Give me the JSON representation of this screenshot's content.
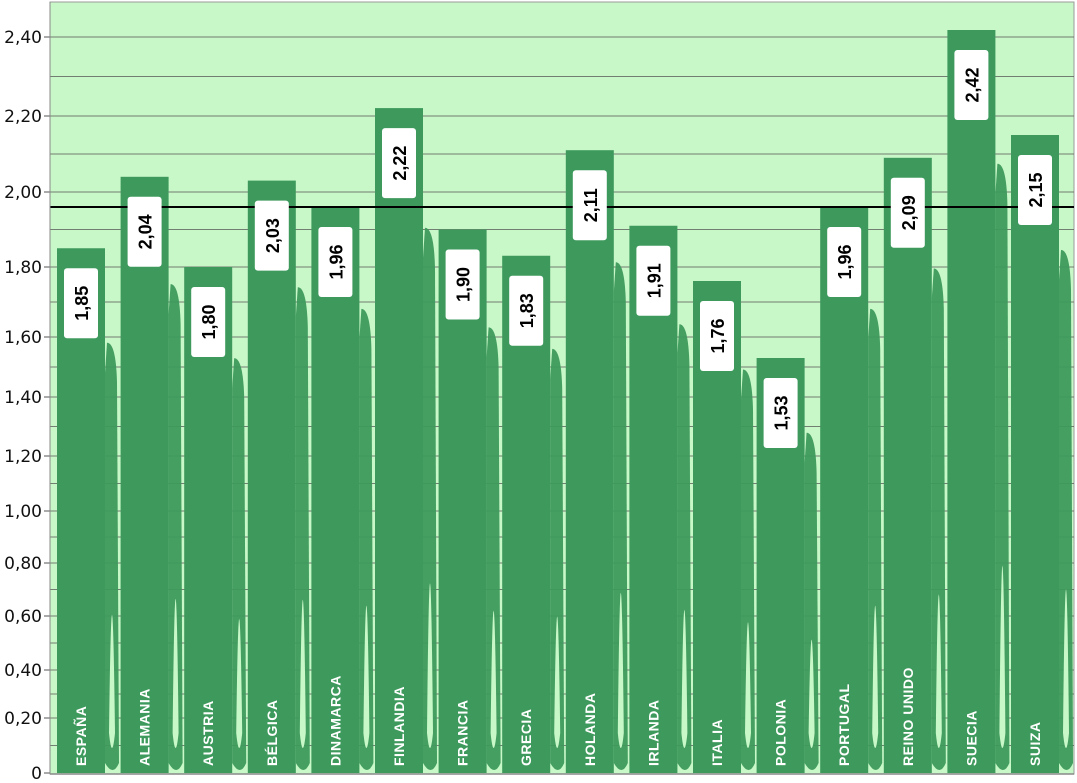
{
  "chart_data": {
    "type": "bar",
    "title": "",
    "xlabel": "",
    "ylabel": "",
    "categories": [
      "ESPAÑA",
      "ALEMANIA",
      "AUSTRIA",
      "BÉLGICA",
      "DINAMARCA",
      "FINLANDIA",
      "FRANCIA",
      "GRECIA",
      "HOLANDA",
      "IRLANDA",
      "ITALIA",
      "POLONIA",
      "PORTUGAL",
      "REINO UNIDO",
      "SUECIA",
      "SUIZA"
    ],
    "values": [
      1.85,
      2.04,
      1.8,
      2.03,
      1.96,
      2.22,
      1.9,
      1.83,
      2.11,
      1.91,
      1.76,
      1.53,
      1.96,
      2.09,
      2.42,
      2.15
    ],
    "value_labels": [
      "1,85",
      "2,04",
      "1,80",
      "2,03",
      "1,96",
      "2,22",
      "1,90",
      "1,83",
      "2,11",
      "1,91",
      "1,76",
      "1,53",
      "1,96",
      "2,09",
      "2,42",
      "2,15"
    ],
    "reference_line": 1.96,
    "ylim": [
      0,
      2.5
    ],
    "y_ticks": [
      {
        "value": 0,
        "label": "0"
      },
      {
        "value": 0.2,
        "label": "0,20"
      },
      {
        "value": 0.4,
        "label": "0,40"
      },
      {
        "value": 0.6,
        "label": "0,60"
      },
      {
        "value": 0.8,
        "label": "0,80"
      },
      {
        "value": 1.0,
        "label": "1,00"
      },
      {
        "value": 1.2,
        "label": "1,20"
      },
      {
        "value": 1.4,
        "label": "1,40"
      },
      {
        "value": 1.6,
        "label": "1,60"
      },
      {
        "value": 1.8,
        "label": "1,80"
      },
      {
        "value": 2.0,
        "label": "2,00"
      },
      {
        "value": 2.2,
        "label": "2,20"
      },
      {
        "value": 2.4,
        "label": "2,40"
      }
    ],
    "grid": true,
    "legend": "none",
    "colors": {
      "bar": "#3d9a5c",
      "background": "#c8f7c8",
      "label_box": "#ffffff",
      "reference": "#000000",
      "category_text": "#ffffff"
    }
  }
}
